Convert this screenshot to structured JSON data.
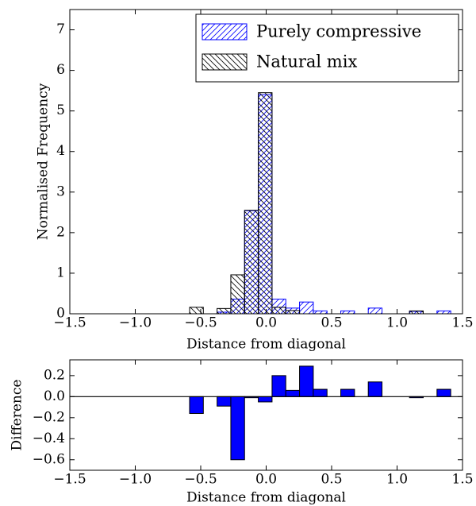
{
  "chart_data": [
    {
      "type": "histogram",
      "xlabel": "Distance from diagonal",
      "ylabel": "Normalised Frequency",
      "bins": [
        -0.585,
        -0.48,
        -0.375,
        -0.27,
        -0.165,
        -0.06,
        0.045,
        0.15,
        0.255,
        0.36,
        0.465,
        0.57,
        0.675,
        0.78,
        0.885,
        0.99,
        1.095,
        1.2,
        1.305,
        1.41
      ],
      "series": [
        {
          "name": "Purely compressive",
          "color": "#0000ff",
          "hatch": "forward",
          "values": [
            0,
            0,
            0.04,
            0.36,
            2.54,
            5.4,
            0.36,
            0.14,
            0.29,
            0.07,
            0,
            0.07,
            0,
            0.14,
            0,
            0,
            0.06,
            0,
            0.07
          ]
        },
        {
          "name": "Natural mix",
          "color": "#000000",
          "hatch": "backward",
          "values": [
            0.16,
            0,
            0.13,
            0.96,
            2.55,
            5.45,
            0.16,
            0.08,
            0,
            0,
            0,
            0,
            0,
            0,
            0,
            0,
            0.07,
            0,
            0
          ]
        }
      ],
      "xlim": [
        -1.5,
        1.5
      ],
      "ylim": [
        0,
        7.5
      ],
      "xticks": [
        {
          "value": -1.5,
          "label": "−1.5"
        },
        {
          "value": -1.0,
          "label": "−1.0"
        },
        {
          "value": -0.5,
          "label": "−0.5"
        },
        {
          "value": 0,
          "label": "0.0"
        },
        0.5,
        {
          "value": 1.0,
          "label": "1.0"
        },
        1.5
      ],
      "yticks": [
        0,
        1,
        2,
        3,
        4,
        5,
        6,
        7
      ],
      "legend": "upper right"
    },
    {
      "type": "histogram",
      "xlabel": "Distance from diagonal",
      "ylabel": "Difference",
      "bins": [
        -0.585,
        -0.48,
        -0.375,
        -0.27,
        -0.165,
        -0.06,
        0.045,
        0.15,
        0.255,
        0.36,
        0.465,
        0.57,
        0.675,
        0.78,
        0.885,
        0.99,
        1.095,
        1.2,
        1.305,
        1.41
      ],
      "values": [
        -0.16,
        0,
        -0.09,
        -0.6,
        -0.01,
        -0.05,
        0.2,
        0.06,
        0.29,
        0.07,
        0,
        0.07,
        0,
        0.14,
        0,
        0,
        -0.01,
        0,
        0.07
      ],
      "color": "#0000ff",
      "xlim": [
        -1.5,
        1.5
      ],
      "ylim": [
        -0.7,
        0.35
      ],
      "xticks": [
        {
          "value": -1.5,
          "label": "−1.5"
        },
        {
          "value": -1.0,
          "label": "−1.0"
        },
        {
          "value": -0.5,
          "label": "−0.5"
        },
        {
          "value": 0,
          "label": "0.0"
        },
        0.5,
        {
          "value": 1.0,
          "label": "1.0"
        },
        1.5
      ],
      "yticks": [
        {
          "value": -0.6,
          "label": "−0.6"
        },
        {
          "value": -0.4,
          "label": "−0.4"
        },
        {
          "value": -0.2,
          "label": "−0.2"
        },
        {
          "value": 0,
          "label": "0.0"
        },
        0.2
      ]
    }
  ]
}
